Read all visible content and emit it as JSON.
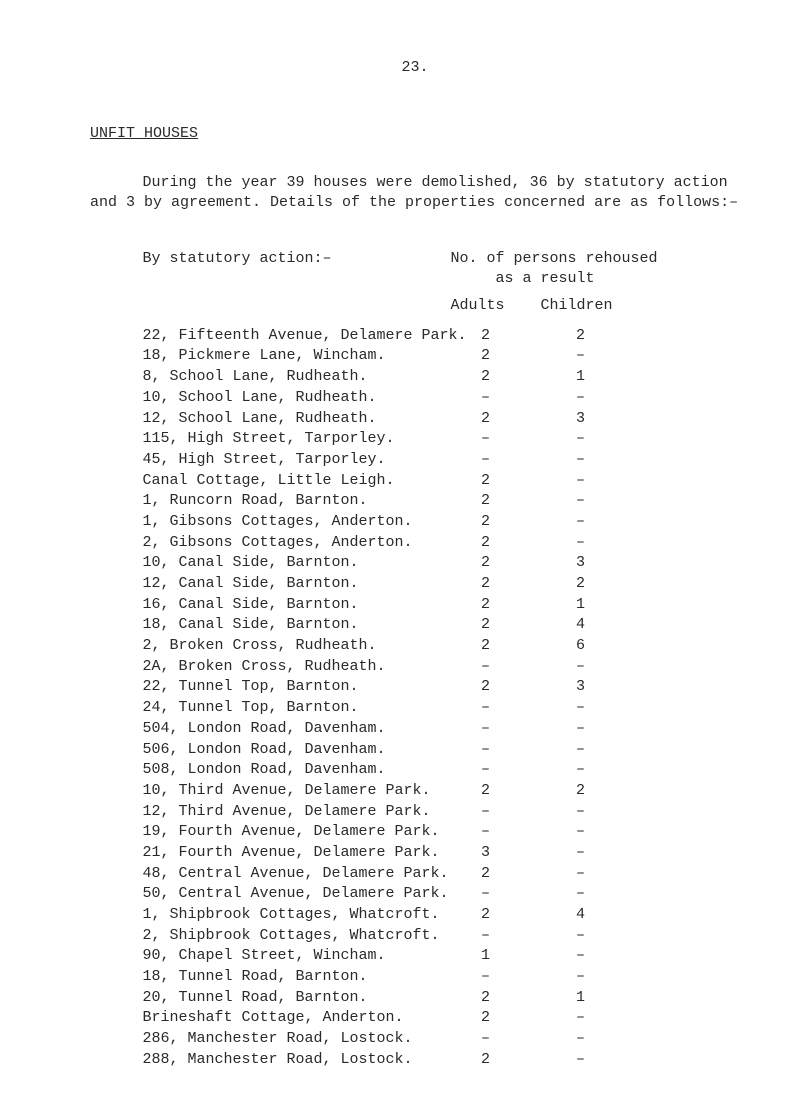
{
  "page_number": "23.",
  "section_heading": "UNFIT HOUSES",
  "intro": "During the year 39 houses were demolished, 36 by statutory action and 3 by agreement.   Details of the properties concerned are as follows:–",
  "table": {
    "left_header": "By statutory action:–",
    "right_header_line1": "No. of persons rehoused",
    "right_header_line2": "as a result",
    "col_adults": "Adults",
    "col_children": "Children",
    "rows": [
      {
        "desc": "22, Fifteenth Avenue, Delamere Park.",
        "adults": "2",
        "children": "2"
      },
      {
        "desc": "18, Pickmere Lane, Wincham.",
        "adults": "2",
        "children": "–"
      },
      {
        "desc": "8, School Lane, Rudheath.",
        "adults": "2",
        "children": "1"
      },
      {
        "desc": "10, School Lane, Rudheath.",
        "adults": "–",
        "children": "–"
      },
      {
        "desc": "12, School Lane, Rudheath.",
        "adults": "2",
        "children": "3"
      },
      {
        "desc": "115, High Street, Tarporley.",
        "adults": "–",
        "children": "–"
      },
      {
        "desc": "45, High Street, Tarporley.",
        "adults": "–",
        "children": "–"
      },
      {
        "desc": "Canal Cottage, Little Leigh.",
        "adults": "2",
        "children": "–"
      },
      {
        "desc": "1, Runcorn Road, Barnton.",
        "adults": "2",
        "children": "–"
      },
      {
        "desc": "1, Gibsons Cottages, Anderton.",
        "adults": "2",
        "children": "–"
      },
      {
        "desc": "2, Gibsons Cottages, Anderton.",
        "adults": "2",
        "children": "–"
      },
      {
        "desc": "10, Canal Side, Barnton.",
        "adults": "2",
        "children": "3"
      },
      {
        "desc": "12, Canal Side, Barnton.",
        "adults": "2",
        "children": "2"
      },
      {
        "desc": "16, Canal Side, Barnton.",
        "adults": "2",
        "children": "1"
      },
      {
        "desc": "18, Canal Side, Barnton.",
        "adults": "2",
        "children": "4"
      },
      {
        "desc": "2, Broken Cross, Rudheath.",
        "adults": "2",
        "children": "6"
      },
      {
        "desc": "2A, Broken Cross, Rudheath.",
        "adults": "–",
        "children": "–"
      },
      {
        "desc": "22, Tunnel Top, Barnton.",
        "adults": "2",
        "children": "3"
      },
      {
        "desc": "24, Tunnel Top, Barnton.",
        "adults": "–",
        "children": "–"
      },
      {
        "desc": "504, London Road, Davenham.",
        "adults": "–",
        "children": "–"
      },
      {
        "desc": "506, London Road, Davenham.",
        "adults": "–",
        "children": "–"
      },
      {
        "desc": "508, London Road, Davenham.",
        "adults": "–",
        "children": "–"
      },
      {
        "desc": "10, Third Avenue, Delamere Park.",
        "adults": "2",
        "children": "2"
      },
      {
        "desc": "12, Third Avenue, Delamere Park.",
        "adults": "–",
        "children": "–"
      },
      {
        "desc": "19, Fourth Avenue, Delamere Park.",
        "adults": "–",
        "children": "–"
      },
      {
        "desc": "21, Fourth Avenue, Delamere Park.",
        "adults": "3",
        "children": "–"
      },
      {
        "desc": "48, Central Avenue, Delamere Park.",
        "adults": "2",
        "children": "–"
      },
      {
        "desc": "50, Central Avenue, Delamere Park.",
        "adults": "–",
        "children": "–"
      },
      {
        "desc": "1, Shipbrook Cottages, Whatcroft.",
        "adults": "2",
        "children": "4"
      },
      {
        "desc": "2, Shipbrook Cottages, Whatcroft.",
        "adults": "–",
        "children": "–"
      },
      {
        "desc": "90, Chapel Street, Wincham.",
        "adults": "1",
        "children": "–"
      },
      {
        "desc": "18, Tunnel Road, Barnton.",
        "adults": "–",
        "children": "–"
      },
      {
        "desc": "20, Tunnel Road, Barnton.",
        "adults": "2",
        "children": "1"
      },
      {
        "desc": "Brineshaft Cottage, Anderton.",
        "adults": "2",
        "children": "–"
      },
      {
        "desc": "286, Manchester Road, Lostock.",
        "adults": "–",
        "children": "–"
      },
      {
        "desc": "288, Manchester Road, Lostock.",
        "adults": "2",
        "children": "–"
      }
    ]
  }
}
